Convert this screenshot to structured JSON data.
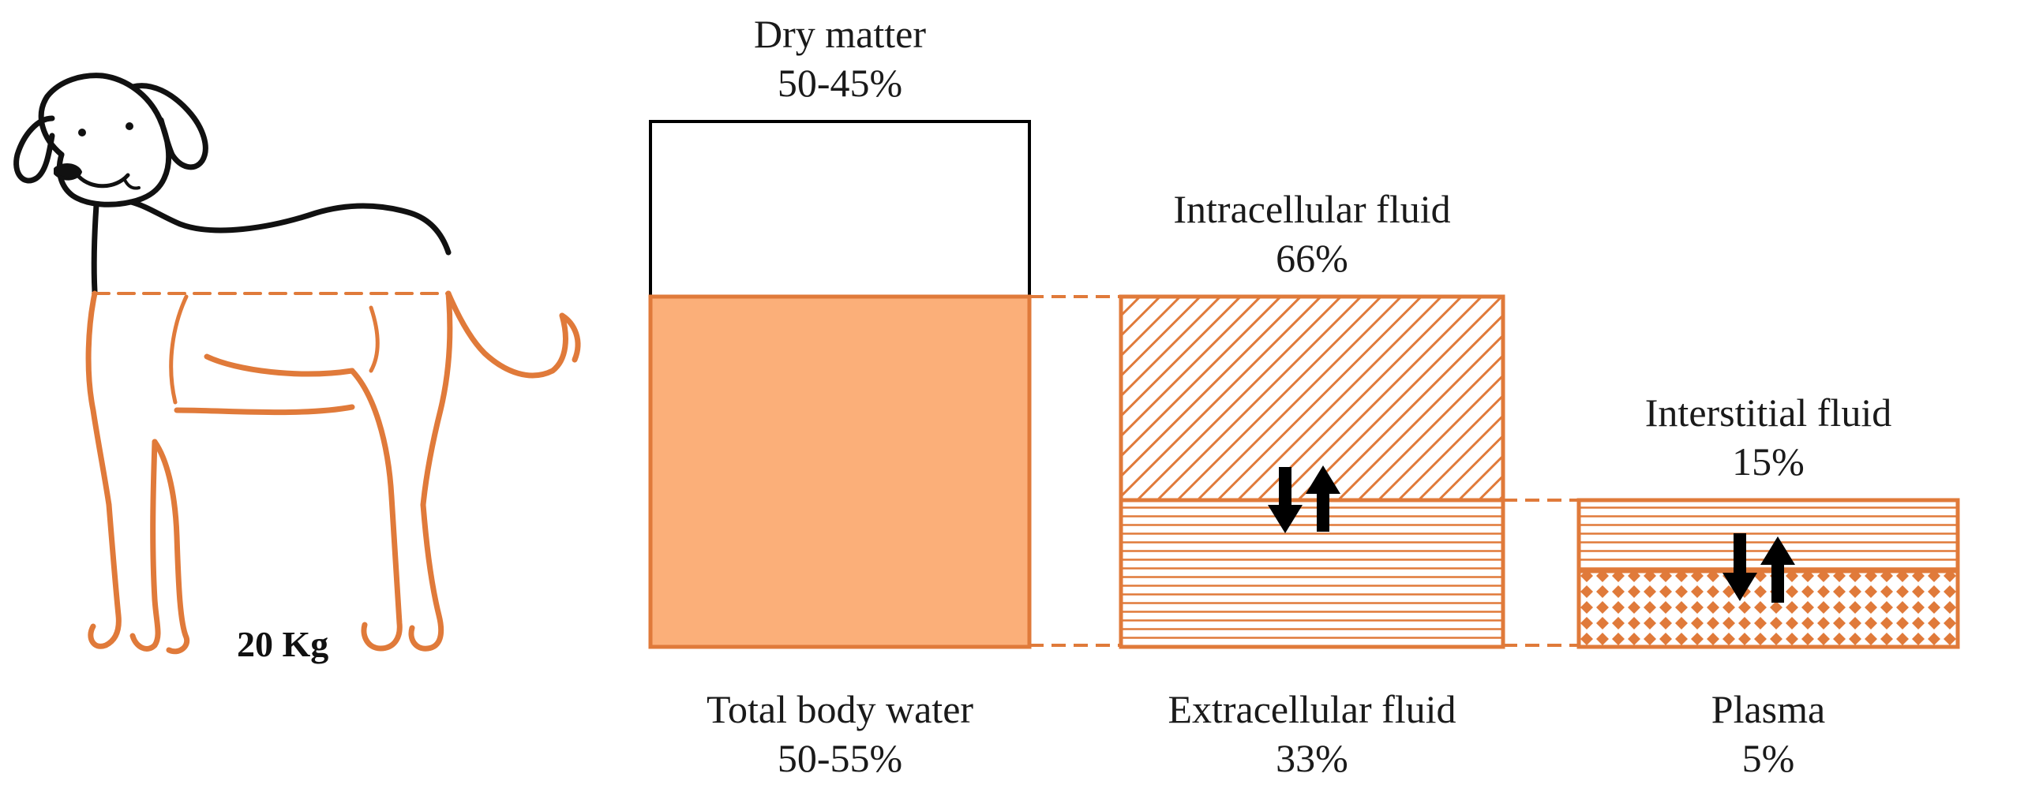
{
  "colors": {
    "accent": "#E07A3A",
    "fill": "#FBAF79",
    "outline": "#000000"
  },
  "animal": {
    "icon": "dog-icon",
    "weight_label": "20 Kg"
  },
  "dry_matter": {
    "name": "Dry matter",
    "percent": "50-45%"
  },
  "total_body_water": {
    "name": "Total body water",
    "percent": "50-55%"
  },
  "intracellular_fluid": {
    "name": "Intracellular fluid",
    "percent": "66%"
  },
  "extracellular_fluid": {
    "name": "Extracellular fluid",
    "percent": "33%"
  },
  "interstitial_fluid": {
    "name": "Interstitial fluid",
    "percent": "15%"
  },
  "plasma": {
    "name": "Plasma",
    "percent": "5%"
  }
}
